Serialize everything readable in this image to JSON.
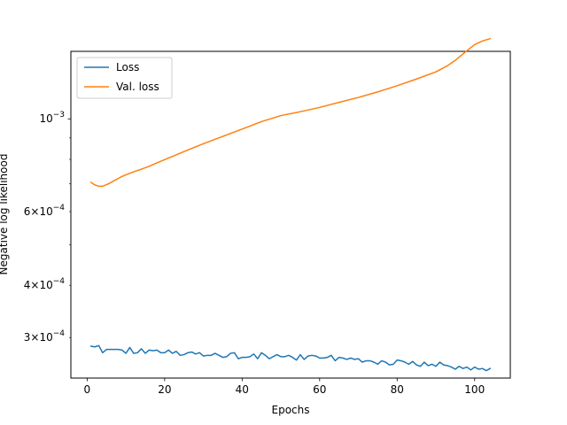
{
  "chart_data": {
    "type": "line",
    "xlabel": "Epochs",
    "ylabel": "Negative log likelihood",
    "yscale": "log",
    "xlim": [
      -4.2,
      109.2
    ],
    "ylim": [
      0.00024,
      0.00145
    ],
    "grid": false,
    "legend_position": "top-left",
    "x_ticks": [
      {
        "value": 0,
        "label": "0"
      },
      {
        "value": 20,
        "label": "20"
      },
      {
        "value": 40,
        "label": "40"
      },
      {
        "value": 60,
        "label": "60"
      },
      {
        "value": 80,
        "label": "80"
      },
      {
        "value": 100,
        "label": "100"
      }
    ],
    "y_ticks": [
      {
        "value": 0.0003,
        "mantissa": "3",
        "exponent": "−4",
        "major": false
      },
      {
        "value": 0.0004,
        "mantissa": "4",
        "exponent": "−4",
        "major": false
      },
      {
        "value": 0.0006,
        "mantissa": "6",
        "exponent": "−4",
        "major": false
      },
      {
        "value": 0.001,
        "mantissa": "",
        "exponent": "−3",
        "major": true
      }
    ],
    "y_minor_unlabeled": [
      0.0005,
      0.0007,
      0.0008,
      0.0009
    ],
    "series": [
      {
        "name": "Loss",
        "color": "#1f77b4",
        "x": [
          1,
          2,
          3,
          4,
          5,
          6,
          7,
          8,
          9,
          10,
          11,
          12,
          13,
          14,
          15,
          16,
          17,
          18,
          19,
          20,
          21,
          22,
          23,
          24,
          25,
          26,
          27,
          28,
          29,
          30,
          31,
          32,
          33,
          34,
          35,
          36,
          37,
          38,
          39,
          40,
          41,
          42,
          43,
          44,
          45,
          46,
          47,
          48,
          49,
          50,
          51,
          52,
          53,
          54,
          55,
          56,
          57,
          58,
          59,
          60,
          61,
          62,
          63,
          64,
          65,
          66,
          67,
          68,
          69,
          70,
          71,
          72,
          73,
          74,
          75,
          76,
          77,
          78,
          79,
          80,
          81,
          82,
          83,
          84,
          85,
          86,
          87,
          88,
          89,
          90,
          91,
          92,
          93,
          94,
          95,
          96,
          97,
          98,
          99,
          100,
          101,
          102,
          103,
          104
        ],
        "y": [
          0.000286,
          0.000285,
          0.000287,
          0.000276,
          0.000281,
          0.000281,
          0.000281,
          0.000281,
          0.00028,
          0.000275,
          0.000284,
          0.000275,
          0.000276,
          0.000282,
          0.000275,
          0.00028,
          0.000279,
          0.00028,
          0.000276,
          0.000276,
          0.00028,
          0.000275,
          0.000278,
          0.000272,
          0.000273,
          0.000276,
          0.000277,
          0.000274,
          0.000276,
          0.000271,
          0.000272,
          0.000272,
          0.000275,
          0.000272,
          0.000269,
          0.00027,
          0.000275,
          0.000276,
          0.000267,
          0.000269,
          0.000269,
          0.00027,
          0.000274,
          0.000267,
          0.000276,
          0.000272,
          0.000267,
          0.00027,
          0.000273,
          0.00027,
          0.00027,
          0.000272,
          0.000269,
          0.000265,
          0.000273,
          0.000266,
          0.000271,
          0.000272,
          0.000271,
          0.000268,
          0.000268,
          0.000269,
          0.000272,
          0.000264,
          0.000269,
          0.000268,
          0.000266,
          0.000268,
          0.000266,
          0.000267,
          0.000262,
          0.000264,
          0.000264,
          0.000262,
          0.000259,
          0.000264,
          0.000262,
          0.000258,
          0.000259,
          0.000265,
          0.000264,
          0.000262,
          0.000259,
          0.000263,
          0.000258,
          0.000256,
          0.000262,
          0.000257,
          0.000259,
          0.000256,
          0.000262,
          0.000258,
          0.000257,
          0.000255,
          0.000252,
          0.000256,
          0.000253,
          0.000255,
          0.000251,
          0.000255,
          0.000252,
          0.000253,
          0.00025,
          0.000253
        ]
      },
      {
        "name": "Val. loss",
        "color": "#ff7f0e",
        "x": [
          1,
          2,
          3,
          4,
          5,
          6,
          7,
          8,
          9,
          10,
          12,
          14,
          16,
          18,
          20,
          25,
          30,
          35,
          40,
          45,
          50,
          55,
          60,
          65,
          70,
          75,
          80,
          85,
          90,
          93,
          95,
          97,
          99,
          100,
          102,
          104
        ],
        "y": [
          0.000705,
          0.000695,
          0.00069,
          0.00069,
          0.000696,
          0.000703,
          0.000712,
          0.00072,
          0.000728,
          0.000735,
          0.000747,
          0.000758,
          0.00077,
          0.000785,
          0.000799,
          0.000835,
          0.000872,
          0.000908,
          0.000945,
          0.000985,
          0.001018,
          0.00104,
          0.001065,
          0.001095,
          0.001125,
          0.00116,
          0.0012,
          0.001245,
          0.001295,
          0.00134,
          0.00138,
          0.00143,
          0.00148,
          0.001505,
          0.001535,
          0.001555
        ]
      }
    ]
  }
}
